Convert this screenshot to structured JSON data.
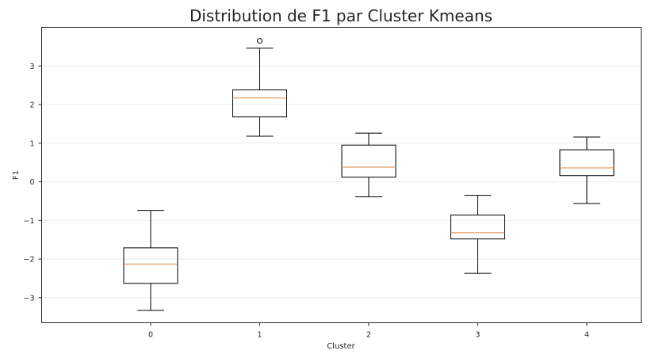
{
  "chart_data": {
    "type": "box",
    "title": "Distribution de F1 par Cluster Kmeans",
    "xlabel": "Cluster",
    "ylabel": "F1",
    "categories": [
      "0",
      "1",
      "2",
      "3",
      "4"
    ],
    "ylim": [
      -3.65,
      4.0
    ],
    "yticks": [
      -3,
      -2,
      -1,
      0,
      1,
      2,
      3
    ],
    "grid": true,
    "boxes": [
      {
        "category": "0",
        "whisker_low": -3.33,
        "q1": -2.63,
        "median": -2.13,
        "q3": -1.71,
        "whisker_high": -0.74,
        "outliers": []
      },
      {
        "category": "1",
        "whisker_low": 1.18,
        "q1": 1.68,
        "median": 2.17,
        "q3": 2.38,
        "whisker_high": 3.46,
        "outliers": [
          3.65
        ]
      },
      {
        "category": "2",
        "whisker_low": -0.39,
        "q1": 0.12,
        "median": 0.38,
        "q3": 0.95,
        "whisker_high": 1.26,
        "outliers": []
      },
      {
        "category": "3",
        "whisker_low": -2.37,
        "q1": -1.48,
        "median": -1.32,
        "q3": -0.86,
        "whisker_high": -0.35,
        "outliers": []
      },
      {
        "category": "4",
        "whisker_low": -0.56,
        "q1": 0.16,
        "median": 0.36,
        "q3": 0.83,
        "whisker_high": 1.16,
        "outliers": []
      }
    ],
    "colors": {
      "box": "#000000",
      "median": "#d9894a",
      "grid": "#e6e6e6"
    }
  }
}
